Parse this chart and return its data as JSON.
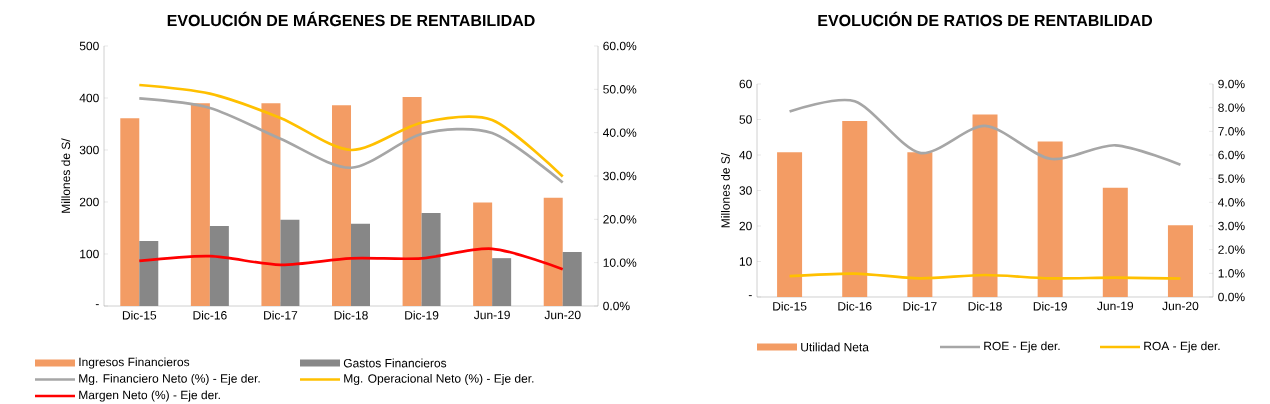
{
  "chart_data": [
    {
      "type": "bar",
      "title": "EVOLUCIÓN DE MÁRGENES DE RENTABILIDAD",
      "ylabel": "Millones de S/",
      "categories": [
        "Dic-15",
        "Dic-16",
        "Dic-17",
        "Dic-18",
        "Dic-19",
        "Jun-19",
        "Jun-20"
      ],
      "series": [
        {
          "name": "Ingresos Financieros",
          "color": "#f39c64",
          "values": [
            361,
            390,
            390,
            386,
            402,
            199,
            208
          ]
        },
        {
          "name": "Gastos Financieros",
          "color": "#878787",
          "values": [
            125,
            154,
            166,
            158,
            179,
            92,
            104
          ]
        },
        {
          "name": "Mg. Financiero Neto (%) - Eje der.",
          "type": "line",
          "axis": "y2",
          "color": "#a6a6a6",
          "values": [
            47.9,
            45.7,
            38.6,
            31.9,
            39.7,
            39.9,
            28.5
          ]
        },
        {
          "name": "Mg. Operacional Neto (%) - Eje der.",
          "type": "line",
          "axis": "y2",
          "color": "#ffc000",
          "values": [
            51.0,
            49.0,
            43.4,
            36.0,
            42.3,
            42.9,
            29.9
          ]
        },
        {
          "name": "Margen Neto (%) - Eje der.",
          "type": "line",
          "axis": "y2",
          "color": "#ff0000",
          "values": [
            10.4,
            11.5,
            9.5,
            11.0,
            11.0,
            13.2,
            8.5
          ]
        }
      ],
      "ylim": [
        0,
        500
      ],
      "yticks": [
        {
          "value": 0,
          "label": "-"
        },
        100,
        200,
        300,
        400,
        500
      ],
      "y2lim": [
        0,
        60
      ],
      "y2ticks": [
        {
          "value": 0,
          "label": "0.0%"
        },
        {
          "value": 10,
          "label": "10.0%"
        },
        {
          "value": 20,
          "label": "20.0%"
        },
        {
          "value": 30,
          "label": "30.0%"
        },
        {
          "value": 40,
          "label": "40.0%"
        },
        {
          "value": 50,
          "label": "50.0%"
        },
        {
          "value": 60,
          "label": "60.0%"
        }
      ],
      "legend": "bottom"
    },
    {
      "type": "bar",
      "title": "EVOLUCIÓN DE RATIOS DE RENTABILIDAD",
      "ylabel": "Millones de S/",
      "categories": [
        "Dic-15",
        "Dic-16",
        "Dic-17",
        "Dic-18",
        "Dic-19",
        "Jun-19",
        "Jun-20"
      ],
      "series": [
        {
          "name": "Utilidad Neta",
          "color": "#f39c64",
          "values": [
            40.8,
            49.6,
            40.8,
            51.4,
            43.8,
            30.8,
            20.2
          ]
        },
        {
          "name": "ROE - Eje der.",
          "type": "line",
          "axis": "y2",
          "color": "#a6a6a6",
          "values": [
            7.84,
            8.27,
            6.09,
            7.23,
            5.84,
            6.41,
            5.59
          ]
        },
        {
          "name": "ROA - Eje der.",
          "type": "line",
          "axis": "y2",
          "color": "#ffc000",
          "values": [
            0.88,
            0.99,
            0.79,
            0.93,
            0.79,
            0.82,
            0.78
          ]
        }
      ],
      "ylim": [
        0,
        60
      ],
      "yticks": [
        {
          "value": 0,
          "label": "-"
        },
        10,
        20,
        30,
        40,
        50,
        60
      ],
      "y2lim": [
        0,
        9
      ],
      "y2ticks": [
        {
          "value": 0,
          "label": "0.0%"
        },
        {
          "value": 1,
          "label": "1.0%"
        },
        {
          "value": 2,
          "label": "2.0%"
        },
        {
          "value": 3,
          "label": "3.0%"
        },
        {
          "value": 4,
          "label": "4.0%"
        },
        {
          "value": 5,
          "label": "5.0%"
        },
        {
          "value": 6,
          "label": "6.0%"
        },
        {
          "value": 7,
          "label": "7.0%"
        },
        {
          "value": 8,
          "label": "8.0%"
        },
        {
          "value": 9,
          "label": "9.0%"
        }
      ],
      "legend": "bottom"
    }
  ]
}
